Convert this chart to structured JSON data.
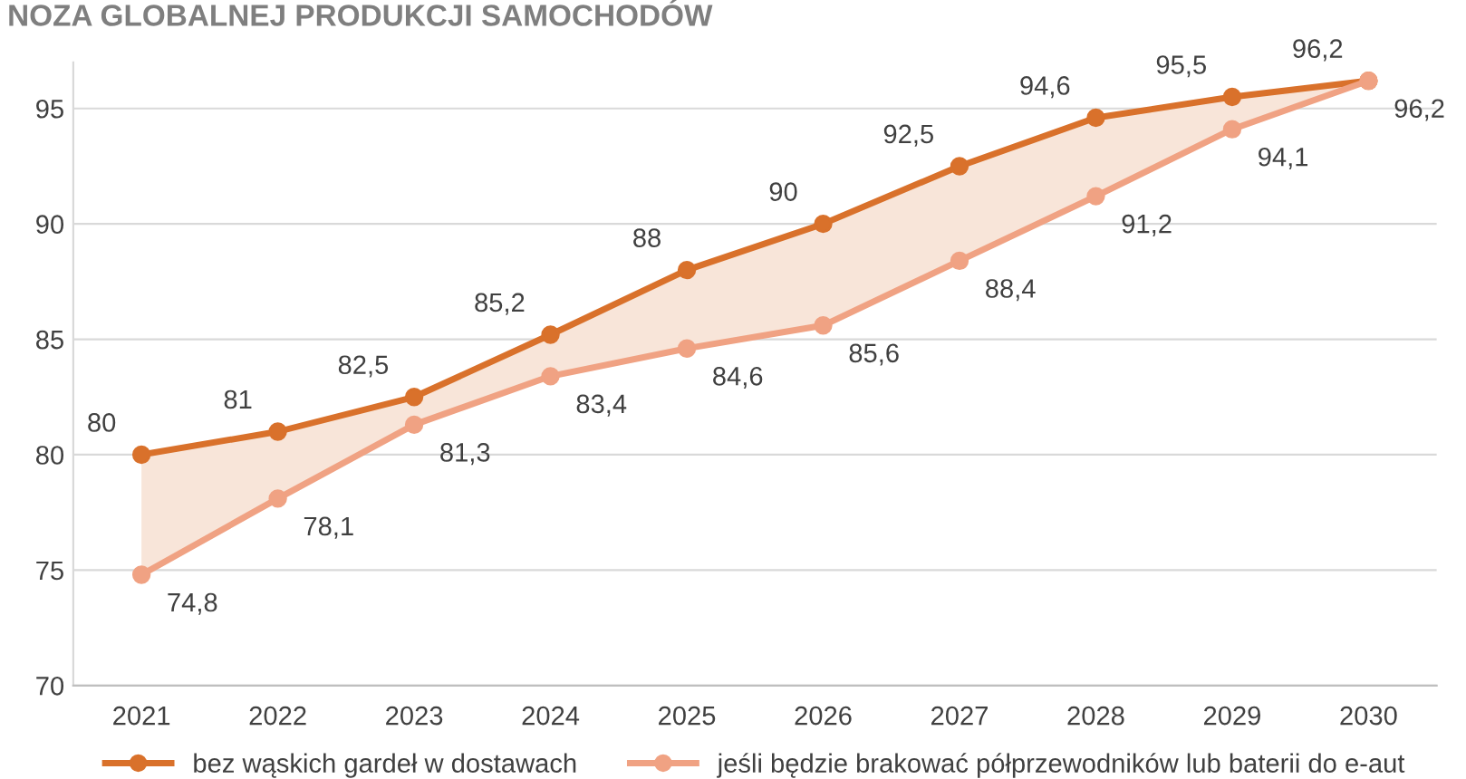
{
  "chart_data": {
    "type": "line",
    "title": "NOZA GLOBALNEJ PRODUKCJI SAMOCHODÓW",
    "categories": [
      "2021",
      "2022",
      "2023",
      "2024",
      "2025",
      "2026",
      "2027",
      "2028",
      "2029",
      "2030"
    ],
    "series": [
      {
        "name": "bez wąskich gardeł w dostawach",
        "color": "#d9712b",
        "values": [
          80,
          81,
          82.5,
          85.2,
          88,
          90,
          92.5,
          94.6,
          95.5,
          96.2
        ],
        "value_labels": [
          "80",
          "81",
          "82,5",
          "85,2",
          "88",
          "90",
          "92,5",
          "94,6",
          "95,5",
          "96,2"
        ],
        "lower": [
          74.8,
          78.1,
          81.3,
          83.4,
          84.6,
          85.6,
          88.4,
          91.2,
          94.1,
          96.2
        ],
        "upper": [
          80,
          81,
          82.5,
          85.2,
          88,
          90,
          92.5,
          94.6,
          95.5,
          96.2
        ]
      },
      {
        "name": "jeśli będzie brakować półprzewodników lub baterii do e-aut",
        "color": "#f0a283",
        "values": [
          74.8,
          78.1,
          81.3,
          83.4,
          84.6,
          85.6,
          88.4,
          91.2,
          94.1,
          96.2
        ],
        "value_labels": [
          "74,8",
          "78,1",
          "81,3",
          "83,4",
          "84,6",
          "85,6",
          "88,4",
          "91,2",
          "94,1",
          "96,2"
        ]
      }
    ],
    "ylim": [
      70,
      97
    ],
    "yticks": [
      70,
      75,
      80,
      85,
      90,
      95
    ],
    "grid": "y",
    "legend": "bottom",
    "marker": "circle",
    "line_style": "solid"
  }
}
